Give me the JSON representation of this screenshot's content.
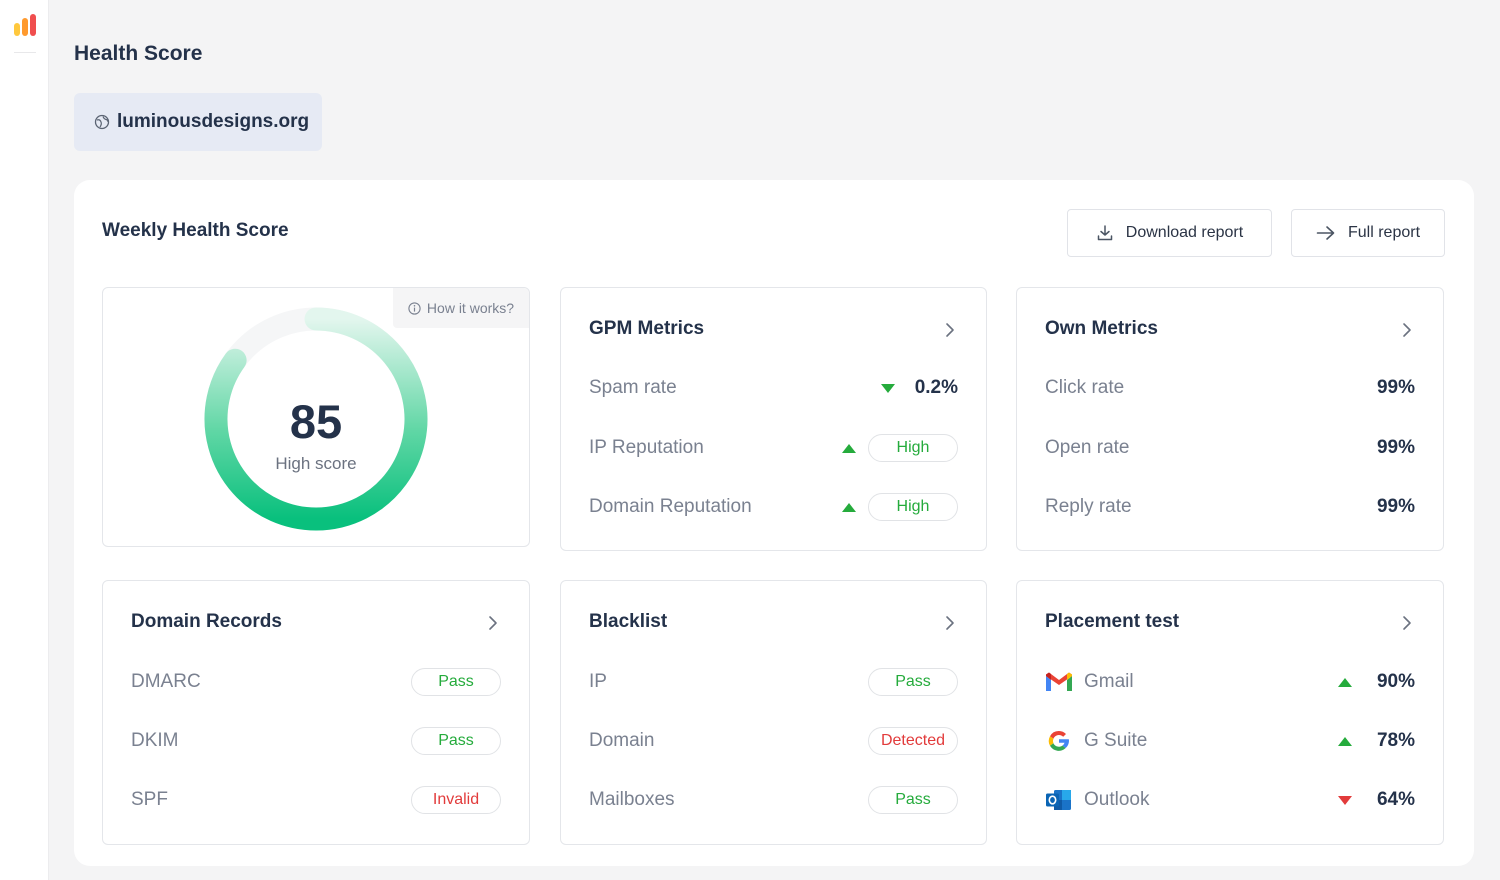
{
  "page": {
    "title": "Health Score"
  },
  "domain": {
    "name": "luminousdesigns.org"
  },
  "panel": {
    "title": "Weekly Health Score",
    "download_label": "Download report",
    "full_report_label": "Full report"
  },
  "score": {
    "value": "85",
    "label": "High score",
    "how_label": "How it works?",
    "percent": 85
  },
  "gpm": {
    "title": "GPM Metrics",
    "rows": [
      {
        "label": "Spam rate",
        "trend": "down",
        "value": "0.2%"
      },
      {
        "label": "IP Reputation",
        "trend": "up",
        "value": "High"
      },
      {
        "label": "Domain Reputation",
        "trend": "up",
        "value": "High"
      }
    ]
  },
  "own": {
    "title": "Own Metrics",
    "rows": [
      {
        "label": "Click rate",
        "value": "99%"
      },
      {
        "label": "Open rate",
        "value": "99%"
      },
      {
        "label": "Reply rate",
        "value": "99%"
      }
    ]
  },
  "domain_records": {
    "title": "Domain Records",
    "rows": [
      {
        "label": "DMARC",
        "status": "Pass"
      },
      {
        "label": "DKIM",
        "status": "Pass"
      },
      {
        "label": "SPF",
        "status": "Invalid"
      }
    ]
  },
  "blacklist": {
    "title": "Blacklist",
    "rows": [
      {
        "label": "IP",
        "status": "Pass"
      },
      {
        "label": "Domain",
        "status": "Detected"
      },
      {
        "label": "Mailboxes",
        "status": "Pass"
      }
    ]
  },
  "placement": {
    "title": "Placement test",
    "rows": [
      {
        "label": "Gmail",
        "icon": "gmail-icon",
        "trend": "up",
        "value": "90%"
      },
      {
        "label": "G Suite",
        "icon": "google-icon",
        "trend": "up",
        "value": "78%"
      },
      {
        "label": "Outlook",
        "icon": "outlook-icon",
        "trend": "down",
        "value": "64%"
      }
    ]
  },
  "colors": {
    "pass": "#25ab3c",
    "fail": "#e23b3b",
    "gauge": "#10c07f",
    "domain_bg": "#e6eaf4"
  }
}
